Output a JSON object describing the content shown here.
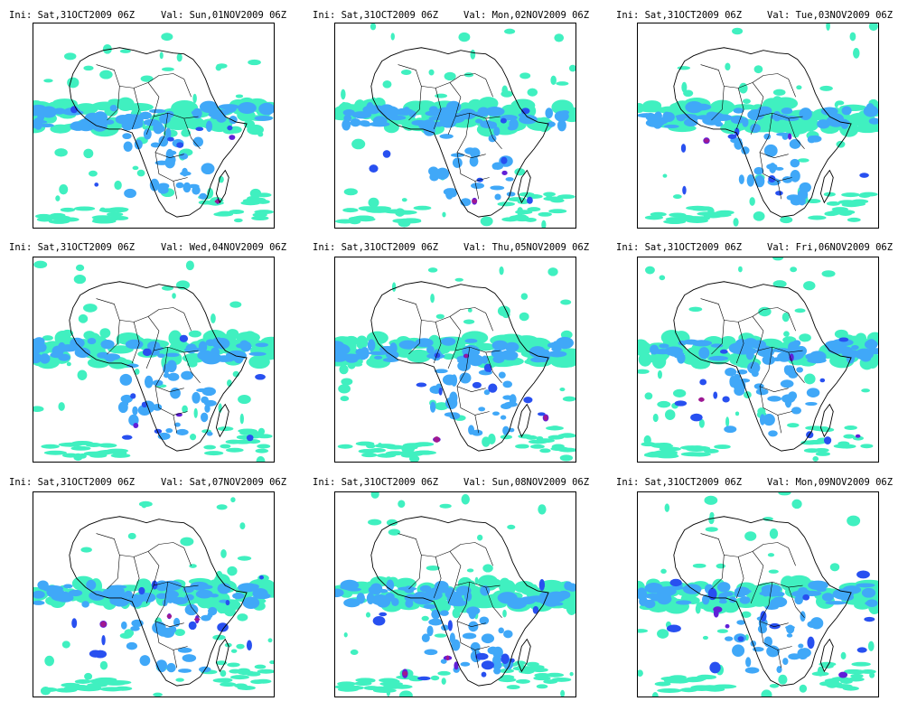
{
  "init_label": "Ini: Sat,31OCT2009 06Z",
  "colors": {
    "light": "#40F0C0",
    "mid": "#40A8F8",
    "strong": "#2850F0",
    "heavy": "#6020D8",
    "peak": "#A01890",
    "coast": "#000000"
  },
  "panels": [
    {
      "ini": "Ini: Sat,31OCT2009 06Z",
      "val": "Val: Sun,01NOV2009 06Z",
      "day": 1
    },
    {
      "ini": "Ini: Sat,31OCT2009 06Z",
      "val": "Val: Mon,02NOV2009 06Z",
      "day": 2
    },
    {
      "ini": "Ini: Sat,31OCT2009 06Z",
      "val": "Val: Tue,03NOV2009 06Z",
      "day": 3
    },
    {
      "ini": "Ini: Sat,31OCT2009 06Z",
      "val": "Val: Wed,04NOV2009 06Z",
      "day": 4
    },
    {
      "ini": "Ini: Sat,31OCT2009 06Z",
      "val": "Val: Thu,05NOV2009 06Z",
      "day": 5
    },
    {
      "ini": "Ini: Sat,31OCT2009 06Z",
      "val": "Val: Fri,06NOV2009 06Z",
      "day": 6
    },
    {
      "ini": "Ini: Sat,31OCT2009 06Z",
      "val": "Val: Sat,07NOV2009 06Z",
      "day": 7
    },
    {
      "ini": "Ini: Sat,31OCT2009 06Z",
      "val": "Val: Sun,08NOV2009 06Z",
      "day": 8
    },
    {
      "ini": "Ini: Sat,31OCT2009 06Z",
      "val": "Val: Mon,09NOV2009 06Z",
      "day": 9
    }
  ]
}
